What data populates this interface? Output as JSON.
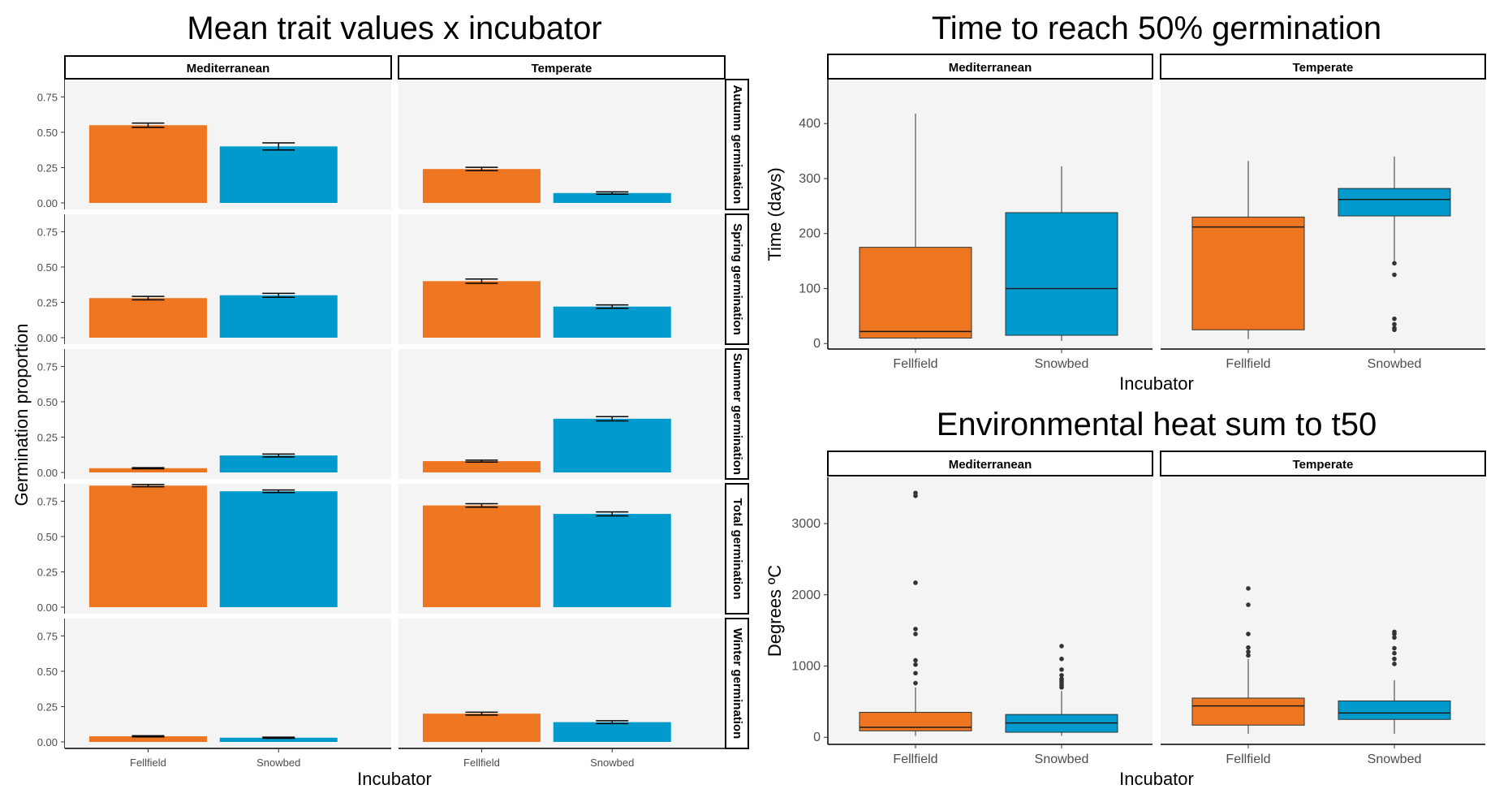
{
  "colors": {
    "Fellfield": "#EE7621",
    "Snowbed": "#009ACD",
    "panel": "#F4F4F4"
  },
  "chart_data": [
    {
      "type": "bar",
      "title": "Mean trait values x incubator",
      "xlabel": "Incubator",
      "ylabel": "Germination proportion",
      "ylim": [
        0,
        0.85
      ],
      "yticks": [
        "0.00",
        "0.25",
        "0.50",
        "0.75"
      ],
      "categories": [
        "Fellfield",
        "Snowbed"
      ],
      "columns": [
        "Mediterranean",
        "Temperate"
      ],
      "rows": [
        "Autumn germination",
        "Spring germination",
        "Summer germination",
        "Total germination",
        "Winter germination"
      ],
      "panels": [
        {
          "row": "Autumn germination",
          "column": "Mediterranean",
          "values": [
            0.55,
            0.4
          ],
          "se": [
            0.015,
            0.025
          ]
        },
        {
          "row": "Autumn germination",
          "column": "Temperate",
          "values": [
            0.24,
            0.07
          ],
          "se": [
            0.012,
            0.008
          ]
        },
        {
          "row": "Spring germination",
          "column": "Mediterranean",
          "values": [
            0.28,
            0.3
          ],
          "se": [
            0.012,
            0.014
          ]
        },
        {
          "row": "Spring germination",
          "column": "Temperate",
          "values": [
            0.4,
            0.22
          ],
          "se": [
            0.015,
            0.012
          ]
        },
        {
          "row": "Summer germination",
          "column": "Mediterranean",
          "values": [
            0.03,
            0.12
          ],
          "se": [
            0.004,
            0.01
          ]
        },
        {
          "row": "Summer germination",
          "column": "Temperate",
          "values": [
            0.08,
            0.38
          ],
          "se": [
            0.007,
            0.015
          ]
        },
        {
          "row": "Total germination",
          "column": "Mediterranean",
          "values": [
            0.86,
            0.82
          ],
          "se": [
            0.008,
            0.009
          ]
        },
        {
          "row": "Total germination",
          "column": "Temperate",
          "values": [
            0.72,
            0.66
          ],
          "se": [
            0.012,
            0.014
          ]
        },
        {
          "row": "Winter germination",
          "column": "Mediterranean",
          "values": [
            0.04,
            0.03
          ],
          "se": [
            0.004,
            0.004
          ]
        },
        {
          "row": "Winter germination",
          "column": "Temperate",
          "values": [
            0.2,
            0.14
          ],
          "se": [
            0.01,
            0.01
          ]
        }
      ]
    },
    {
      "type": "box",
      "title": "Time to reach 50% germination",
      "xlabel": "Incubator",
      "ylabel": "Time (days)",
      "ylim": [
        -10,
        480
      ],
      "yticks": [
        0,
        100,
        200,
        300,
        400
      ],
      "categories": [
        "Fellfield",
        "Snowbed"
      ],
      "columns": [
        "Mediterranean",
        "Temperate"
      ],
      "panels": [
        {
          "column": "Mediterranean",
          "boxes": [
            {
              "name": "Fellfield",
              "whisker_low": 8,
              "q1": 10,
              "median": 22,
              "q3": 175,
              "whisker_high": 418,
              "outliers": []
            },
            {
              "name": "Snowbed",
              "whisker_low": 5,
              "q1": 15,
              "median": 100,
              "q3": 238,
              "whisker_high": 322,
              "outliers": []
            }
          ]
        },
        {
          "column": "Temperate",
          "boxes": [
            {
              "name": "Fellfield",
              "whisker_low": 8,
              "q1": 25,
              "median": 212,
              "q3": 230,
              "whisker_high": 332,
              "outliers": []
            },
            {
              "name": "Snowbed",
              "whisker_low": 150,
              "q1": 232,
              "median": 262,
              "q3": 282,
              "whisker_high": 340,
              "outliers": [
                146,
                125,
                45,
                35,
                28,
                25
              ]
            }
          ]
        }
      ]
    },
    {
      "type": "box",
      "title": "Environmental heat sum to t50",
      "xlabel": "Incubator",
      "ylabel": "Degrees ºC",
      "ylim": [
        -100,
        3650
      ],
      "yticks": [
        0,
        1000,
        2000,
        3000
      ],
      "categories": [
        "Fellfield",
        "Snowbed"
      ],
      "columns": [
        "Mediterranean",
        "Temperate"
      ],
      "panels": [
        {
          "column": "Mediterranean",
          "boxes": [
            {
              "name": "Fellfield",
              "whisker_low": 20,
              "q1": 90,
              "median": 140,
              "q3": 350,
              "whisker_high": 700,
              "outliers": [
                760,
                900,
                1020,
                1080,
                1450,
                1520,
                2170,
                3390,
                3430
              ]
            },
            {
              "name": "Snowbed",
              "whisker_low": 20,
              "q1": 70,
              "median": 200,
              "q3": 320,
              "whisker_high": 650,
              "outliers": [
                700,
                730,
                760,
                790,
                820,
                870,
                950,
                1100,
                1280
              ]
            }
          ]
        },
        {
          "column": "Temperate",
          "boxes": [
            {
              "name": "Fellfield",
              "whisker_low": 50,
              "q1": 170,
              "median": 440,
              "q3": 550,
              "whisker_high": 1100,
              "outliers": [
                1150,
                1200,
                1260,
                1450,
                1860,
                2090
              ]
            },
            {
              "name": "Snowbed",
              "whisker_low": 50,
              "q1": 250,
              "median": 340,
              "q3": 510,
              "whisker_high": 800,
              "outliers": [
                1030,
                1100,
                1180,
                1250,
                1400,
                1450,
                1480
              ]
            }
          ]
        }
      ]
    }
  ]
}
